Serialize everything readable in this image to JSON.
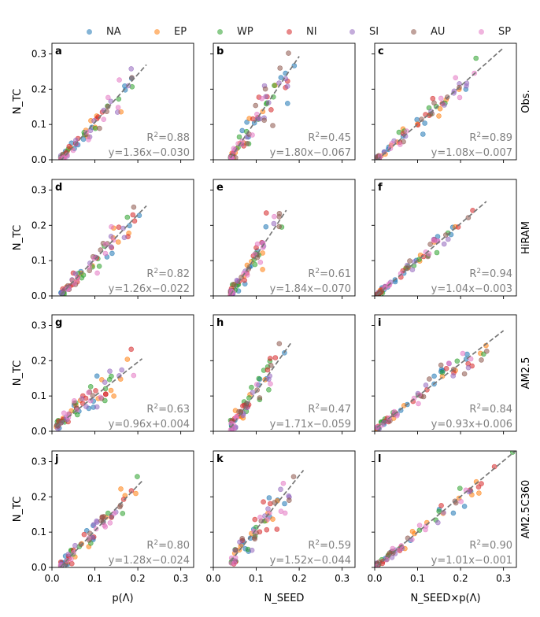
{
  "legend": [
    {
      "name": "NA",
      "color": "#1f77b4"
    },
    {
      "name": "EP",
      "color": "#ff7f0e"
    },
    {
      "name": "WP",
      "color": "#2ca02c"
    },
    {
      "name": "NI",
      "color": "#d62728"
    },
    {
      "name": "SI",
      "color": "#9467bd"
    },
    {
      "name": "AU",
      "color": "#8c564b"
    },
    {
      "name": "SP",
      "color": "#e377c2"
    }
  ],
  "ylabel": "N_TC",
  "xlabels": [
    "p(Λ)",
    "N_SEED",
    "N_SEED×p(Λ)"
  ],
  "row_labels": [
    "Obs.",
    "HiRAM",
    "AM2.5",
    "AM2.5C360"
  ],
  "axis_range": {
    "xlim": [
      0,
      0.33
    ],
    "ylim": [
      0,
      0.33
    ]
  },
  "ticks": {
    "x": [
      0.0,
      0.1,
      0.2,
      0.3
    ],
    "y": [
      0.0,
      0.1,
      0.2,
      0.3
    ],
    "labels": [
      "0.0",
      "0.1",
      "0.2",
      "0.3"
    ]
  },
  "chart_data": [
    {
      "type": "scatter",
      "panel": "a",
      "row": "Obs.",
      "xvar": "p(Λ)",
      "r2": "0.88",
      "fit_text": "y=1.36x−0.030",
      "fit": {
        "slope": 1.36,
        "intercept": -0.03,
        "x_range": [
          0.02,
          0.22
        ]
      },
      "spread": 0.035
    },
    {
      "type": "scatter",
      "panel": "b",
      "row": "Obs.",
      "xvar": "N_SEED",
      "r2": "0.45",
      "fit_text": "y=1.80x−0.067",
      "fit": {
        "slope": 1.8,
        "intercept": -0.067,
        "x_range": [
          0.04,
          0.2
        ]
      },
      "spread": 0.06
    },
    {
      "type": "scatter",
      "panel": "c",
      "row": "Obs.",
      "xvar": "N_SEED×p(Λ)",
      "r2": "0.89",
      "fit_text": "y=1.08x−0.007",
      "fit": {
        "slope": 1.08,
        "intercept": -0.007,
        "x_range": [
          0.005,
          0.3
        ]
      },
      "spread": 0.03
    },
    {
      "type": "scatter",
      "panel": "d",
      "row": "HiRAM",
      "xvar": "p(Λ)",
      "r2": "0.82",
      "fit_text": "y=1.26x−0.022",
      "fit": {
        "slope": 1.26,
        "intercept": -0.022,
        "x_range": [
          0.02,
          0.22
        ]
      },
      "spread": 0.035
    },
    {
      "type": "scatter",
      "panel": "e",
      "row": "HiRAM",
      "xvar": "N_SEED",
      "r2": "0.61",
      "fit_text": "y=1.84x−0.070",
      "fit": {
        "slope": 1.84,
        "intercept": -0.07,
        "x_range": [
          0.04,
          0.17
        ]
      },
      "spread": 0.045
    },
    {
      "type": "scatter",
      "panel": "f",
      "row": "HiRAM",
      "xvar": "N_SEED×p(Λ)",
      "r2": "0.94",
      "fit_text": "y=1.04x−0.003",
      "fit": {
        "slope": 1.04,
        "intercept": -0.003,
        "x_range": [
          0.005,
          0.26
        ]
      },
      "spread": 0.02
    },
    {
      "type": "scatter",
      "panel": "g",
      "row": "AM2.5",
      "xvar": "p(Λ)",
      "r2": "0.63",
      "fit_text": "y=0.96x+0.004",
      "fit": {
        "slope": 0.96,
        "intercept": 0.004,
        "x_range": [
          0.01,
          0.21
        ]
      },
      "spread": 0.04
    },
    {
      "type": "scatter",
      "panel": "h",
      "row": "AM2.5",
      "xvar": "N_SEED",
      "r2": "0.47",
      "fit_text": "y=1.71x−0.059",
      "fit": {
        "slope": 1.71,
        "intercept": -0.059,
        "x_range": [
          0.04,
          0.18
        ]
      },
      "spread": 0.05
    },
    {
      "type": "scatter",
      "panel": "i",
      "row": "AM2.5",
      "xvar": "N_SEED×p(Λ)",
      "r2": "0.84",
      "fit_text": "y=0.93x+0.006",
      "fit": {
        "slope": 0.93,
        "intercept": 0.006,
        "x_range": [
          0.005,
          0.3
        ]
      },
      "spread": 0.03
    },
    {
      "type": "scatter",
      "panel": "j",
      "row": "AM2.5C360",
      "xvar": "p(Λ)",
      "r2": "0.80",
      "fit_text": "y=1.28x−0.024",
      "fit": {
        "slope": 1.28,
        "intercept": -0.024,
        "x_range": [
          0.02,
          0.21
        ]
      },
      "spread": 0.035
    },
    {
      "type": "scatter",
      "panel": "k",
      "row": "AM2.5C360",
      "xvar": "N_SEED",
      "r2": "0.59",
      "fit_text": "y=1.52x−0.044",
      "fit": {
        "slope": 1.52,
        "intercept": -0.044,
        "x_range": [
          0.04,
          0.21
        ]
      },
      "spread": 0.05
    },
    {
      "type": "scatter",
      "panel": "l",
      "row": "AM2.5C360",
      "xvar": "N_SEED×p(Λ)",
      "r2": "0.90",
      "fit_text": "y=1.01x−0.001",
      "fit": {
        "slope": 1.01,
        "intercept": -0.001,
        "x_range": [
          0.005,
          0.33
        ]
      },
      "spread": 0.025
    }
  ]
}
